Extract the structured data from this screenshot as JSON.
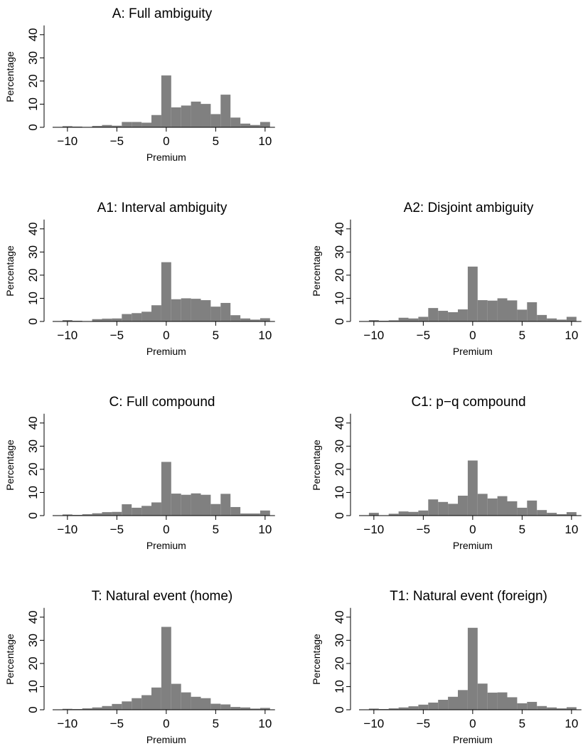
{
  "chart_data": [
    {
      "type": "bar",
      "title": "A: Full ambiguity",
      "xlabel": "Premium",
      "ylabel": "Percentage",
      "xlim": [
        -11.5,
        11.0
      ],
      "ylim": [
        0,
        44
      ],
      "xticks": [
        -10,
        -5,
        0,
        5,
        10
      ],
      "yticks": [
        0,
        10,
        20,
        30,
        40
      ],
      "bin_width": 1,
      "bin_centers": [
        -10,
        -9,
        -8,
        -7,
        -6,
        -5,
        -4,
        -3,
        -2,
        -1,
        0,
        1,
        2,
        3,
        4,
        5,
        6,
        7,
        8,
        9,
        10
      ],
      "values": [
        0.5,
        0.3,
        0,
        0.6,
        1.0,
        0.7,
        2.3,
        2.3,
        2.0,
        5.3,
        22.4,
        8.6,
        9.4,
        11.1,
        10.1,
        5.7,
        14.1,
        4.2,
        1.6,
        1.0,
        2.3
      ]
    },
    {
      "type": "bar",
      "title": "A1: Interval ambiguity",
      "xlabel": "Premium",
      "ylabel": "Percentage",
      "xlim": [
        -11.5,
        11.0
      ],
      "ylim": [
        0,
        44
      ],
      "xticks": [
        -10,
        -5,
        0,
        5,
        10
      ],
      "yticks": [
        0,
        10,
        20,
        30,
        40
      ],
      "bin_width": 1,
      "bin_centers": [
        -10,
        -9,
        -8,
        -7,
        -6,
        -5,
        -4,
        -3,
        -2,
        -1,
        0,
        1,
        2,
        3,
        4,
        5,
        6,
        7,
        8,
        9,
        10
      ],
      "values": [
        0.6,
        0.3,
        0,
        1.0,
        1.2,
        1.3,
        3.2,
        3.6,
        4.2,
        7.0,
        25.6,
        9.6,
        10.0,
        9.8,
        9.2,
        6.4,
        8.0,
        2.7,
        1.3,
        0.8,
        1.4
      ]
    },
    {
      "type": "bar",
      "title": "A2: Disjoint ambiguity",
      "xlabel": "Premium",
      "ylabel": "Percentage",
      "xlim": [
        -11.5,
        11.0
      ],
      "ylim": [
        0,
        44
      ],
      "xticks": [
        -10,
        -5,
        0,
        5,
        10
      ],
      "yticks": [
        0,
        10,
        20,
        30,
        40
      ],
      "bin_width": 1,
      "bin_centers": [
        -10,
        -9,
        -8,
        -7,
        -6,
        -5,
        -4,
        -3,
        -2,
        -1,
        0,
        1,
        2,
        3,
        4,
        5,
        6,
        7,
        8,
        9,
        10
      ],
      "values": [
        0.6,
        0.3,
        0.5,
        1.6,
        1.3,
        2.0,
        5.8,
        4.6,
        4.0,
        5.2,
        23.7,
        9.2,
        9.0,
        10.0,
        9.1,
        5.1,
        8.3,
        2.8,
        1.3,
        0.8,
        2.0
      ]
    },
    {
      "type": "bar",
      "title": "C: Full compound",
      "xlabel": "Premium",
      "ylabel": "Percentage",
      "xlim": [
        -11.5,
        11.0
      ],
      "ylim": [
        0,
        44
      ],
      "xticks": [
        -10,
        -5,
        0,
        5,
        10
      ],
      "yticks": [
        0,
        10,
        20,
        30,
        40
      ],
      "bin_width": 1,
      "bin_centers": [
        -10,
        -9,
        -8,
        -7,
        -6,
        -5,
        -4,
        -3,
        -2,
        -1,
        0,
        1,
        2,
        3,
        4,
        5,
        6,
        7,
        8,
        9,
        10
      ],
      "values": [
        0.5,
        0.3,
        0.6,
        1.0,
        1.5,
        1.6,
        4.9,
        3.4,
        4.2,
        5.7,
        23.2,
        9.5,
        9.0,
        9.6,
        9.0,
        5.0,
        9.4,
        3.7,
        0.9,
        0.9,
        2.2
      ]
    },
    {
      "type": "bar",
      "title": "C1: p−q compound",
      "xlabel": "Premium",
      "ylabel": "Percentage",
      "xlim": [
        -11.5,
        11.0
      ],
      "ylim": [
        0,
        44
      ],
      "xticks": [
        -10,
        -5,
        0,
        5,
        10
      ],
      "yticks": [
        0,
        10,
        20,
        30,
        40
      ],
      "bin_width": 1,
      "bin_centers": [
        -10,
        -9,
        -8,
        -7,
        -6,
        -5,
        -4,
        -3,
        -2,
        -1,
        0,
        1,
        2,
        3,
        4,
        5,
        6,
        7,
        8,
        9,
        10
      ],
      "values": [
        1.2,
        0,
        0.8,
        1.8,
        1.6,
        2.2,
        7.0,
        5.9,
        5.1,
        8.6,
        23.8,
        9.4,
        7.4,
        8.4,
        6.2,
        3.4,
        6.5,
        2.4,
        1.2,
        0.6,
        1.5
      ]
    },
    {
      "type": "bar",
      "title": "T: Natural event (home)",
      "xlabel": "Premium",
      "ylabel": "Percentage",
      "xlim": [
        -11.5,
        11.0
      ],
      "ylim": [
        0,
        44
      ],
      "xticks": [
        -10,
        -5,
        0,
        5,
        10
      ],
      "yticks": [
        0,
        10,
        20,
        30,
        40
      ],
      "bin_width": 1,
      "bin_centers": [
        -10,
        -9,
        -8,
        -7,
        -6,
        -5,
        -4,
        -3,
        -2,
        -1,
        0,
        1,
        2,
        3,
        4,
        5,
        6,
        7,
        8,
        9,
        10
      ],
      "values": [
        0.4,
        0.3,
        0.6,
        1.0,
        1.6,
        2.5,
        3.6,
        5.0,
        6.3,
        9.6,
        35.8,
        11.2,
        7.5,
        5.6,
        5.0,
        2.6,
        2.3,
        1.2,
        1.0,
        0.5,
        0.8
      ]
    },
    {
      "type": "bar",
      "title": "T1: Natural event (foreign)",
      "xlabel": "Premium",
      "ylabel": "Percentage",
      "xlim": [
        -11.5,
        11.0
      ],
      "ylim": [
        0,
        44
      ],
      "xticks": [
        -10,
        -5,
        0,
        5,
        10
      ],
      "yticks": [
        0,
        10,
        20,
        30,
        40
      ],
      "bin_width": 1,
      "bin_centers": [
        -10,
        -9,
        -8,
        -7,
        -6,
        -5,
        -4,
        -3,
        -2,
        -1,
        0,
        1,
        2,
        3,
        4,
        5,
        6,
        7,
        8,
        9,
        10
      ],
      "values": [
        0.5,
        0.3,
        0.6,
        1.0,
        1.5,
        2.2,
        3.1,
        4.3,
        5.6,
        8.5,
        35.4,
        11.3,
        7.4,
        7.5,
        5.4,
        2.8,
        3.4,
        1.6,
        1.0,
        0.6,
        1.1
      ]
    }
  ],
  "colors": {
    "bar": "#808080",
    "axis": "#000000",
    "background": "#ffffff"
  }
}
